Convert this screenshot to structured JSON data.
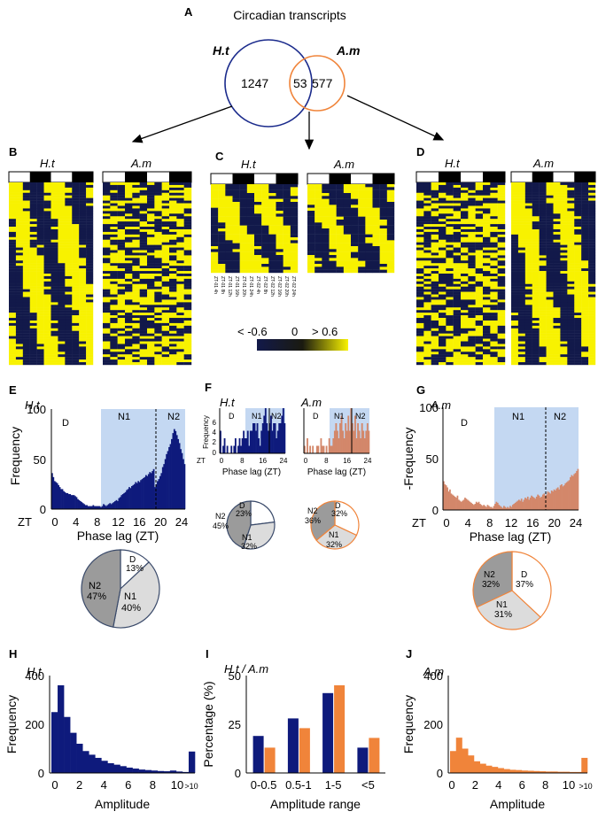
{
  "colors": {
    "navy": "#0e1a7c",
    "orange": "#f0843a",
    "orange_muted": "#d3876a",
    "shade": "#c4d8f2",
    "heat_low": "#12194a",
    "heat_high": "#f8f200",
    "pie_d": "#ffffff",
    "pie_n1": "#dcdcdc",
    "pie_n2": "#9b9b9b"
  },
  "venn": {
    "panel": "A",
    "title": "Circadian transcripts",
    "left_label": "H.t",
    "right_label": "A.m",
    "left_only": "1247",
    "overlap": "53",
    "right_only": "577"
  },
  "heatmaps": {
    "B": {
      "panel": "B",
      "left": "H.t",
      "right": "A.m"
    },
    "C": {
      "panel": "C",
      "left": "H.t",
      "right": "A.m",
      "tick_labels": [
        "ZT-01 4h",
        "ZT-01 8h",
        "ZT-01 12h",
        "ZT-01 16h",
        "ZT-01 20h",
        "ZT-01 24h",
        "ZT-02 4h",
        "ZT-02 8h",
        "ZT-02 12h",
        "ZT-02 16h",
        "ZT-02 20h",
        "ZT-02 24h"
      ]
    },
    "D": {
      "panel": "D",
      "left": "H.t",
      "right": "A.m"
    },
    "scale": {
      "low": "< -0.6",
      "mid": "0",
      "high": "> 0.6"
    }
  },
  "panels": {
    "E": {
      "letter": "E",
      "species": "H.t",
      "ylabel": "Frequency",
      "xlabel": "Phase lag (ZT)",
      "zt": "ZT",
      "zones": [
        "D",
        "N1",
        "N2"
      ],
      "yticks": [
        "0",
        "50",
        "100"
      ],
      "xticks": [
        "0",
        "4",
        "8",
        "12",
        "16",
        "20",
        "24"
      ],
      "pie": {
        "D": "D",
        "D_pct": "13%",
        "N1": "N1",
        "N1_pct": "40%",
        "N2": "N2",
        "N2_pct": "47%"
      }
    },
    "F": {
      "letter": "F",
      "left": {
        "species": "H.t",
        "ylabel": "Frequency",
        "xlabel": "Phase  lag (ZT)",
        "zt": "ZT",
        "zones": [
          "D",
          "N1",
          "N2"
        ],
        "yticks": [
          "0",
          "2",
          "4",
          "6"
        ],
        "xticks": [
          "0",
          "8",
          "16",
          "24"
        ],
        "pie": {
          "D": "D",
          "D_pct": "23%",
          "N1": "N1",
          "N1_pct": "32%",
          "N2": "N2",
          "N2_pct": "45%"
        }
      },
      "right": {
        "species": "A.m",
        "xlabel": "Phase  lag (ZT)",
        "zones": [
          "D",
          "N1",
          "N2"
        ],
        "xticks": [
          "0",
          "8",
          "16",
          "24"
        ],
        "pie": {
          "D": "D",
          "D_pct": "32%",
          "N1": "N1",
          "N1_pct": "32%",
          "N2": "N2",
          "N2_pct": "36%"
        }
      }
    },
    "G": {
      "letter": "G",
      "species": "A.m",
      "ylabel": "-Frequency",
      "xlabel": "Phase lag (ZT)",
      "zt": "ZT",
      "zones": [
        "D",
        "N1",
        "N2"
      ],
      "yticks": [
        "0",
        "50",
        "100"
      ],
      "xticks": [
        "0",
        "4",
        "8",
        "12",
        "16",
        "20",
        "24"
      ],
      "pie": {
        "D": "D",
        "D_pct": "37%",
        "N1": "N1",
        "N1_pct": "31%",
        "N2": "N2",
        "N2_pct": "32%"
      }
    },
    "H": {
      "letter": "H",
      "species": "H.t",
      "ylabel": "Frequency",
      "xlabel": "Amplitude",
      "yticks": [
        "0",
        "200",
        "400"
      ],
      "xticks": [
        "0",
        "2",
        "4",
        "6",
        "8",
        "10",
        ">10"
      ]
    },
    "I": {
      "letter": "I",
      "species": "H.t / A.m",
      "ylabel": "Percentage (%)",
      "xlabel": "Amplitude range",
      "yticks": [
        "0",
        "25",
        "50"
      ],
      "categories": [
        "0-0.5",
        "0.5-1",
        "1-5",
        "<5"
      ]
    },
    "J": {
      "letter": "J",
      "species": "A.m",
      "ylabel": "Frequency",
      "xlabel": "Amplitude",
      "yticks": [
        "0",
        "200",
        "400"
      ],
      "xticks": [
        "0",
        "2",
        "4",
        "6",
        "8",
        "10",
        ">10"
      ]
    }
  },
  "chart_data": [
    {
      "panel": "A",
      "type": "venn",
      "sets": [
        {
          "name": "H.t",
          "only": 1247
        },
        {
          "name": "A.m",
          "only": 577
        }
      ],
      "overlap": 53
    },
    {
      "panel": "E",
      "type": "bar",
      "xlabel": "Phase lag (ZT)",
      "ylabel": "Frequency",
      "xlim": [
        0,
        24
      ],
      "ylim": [
        0,
        100
      ],
      "bin_width": 0.25,
      "zones": [
        {
          "name": "D",
          "range": [
            0,
            10
          ]
        },
        {
          "name": "N1",
          "range": [
            10,
            18.5
          ]
        },
        {
          "name": "N2",
          "range": [
            18.5,
            24
          ]
        }
      ],
      "values": [
        36,
        32,
        28,
        27,
        26,
        24,
        22,
        20,
        20,
        18,
        17,
        16,
        16,
        15,
        15,
        14,
        14,
        14,
        13,
        12,
        10,
        9,
        8,
        7,
        6,
        5,
        4,
        4,
        3,
        3,
        3,
        3,
        4,
        3,
        3,
        3,
        3,
        3,
        2,
        3,
        5,
        4,
        3,
        4,
        5,
        6,
        5,
        6,
        7,
        8,
        9,
        8,
        11,
        12,
        14,
        15,
        16,
        17,
        19,
        20,
        22,
        21,
        23,
        24,
        25,
        27,
        26,
        28,
        27,
        29,
        30,
        31,
        32,
        34,
        33,
        35,
        37,
        36,
        38,
        40,
        22,
        25,
        28,
        30,
        33,
        36,
        42,
        45,
        50,
        55,
        58,
        62,
        65,
        70,
        76,
        80,
        78,
        74,
        70,
        66,
        60,
        56,
        50,
        45
      ]
    },
    {
      "panel": "F",
      "type": "bar",
      "series": [
        {
          "name": "H.t",
          "xlim": [
            0,
            24
          ],
          "ylim": [
            0,
            6
          ],
          "values": [
            3,
            0,
            1,
            2,
            0,
            1,
            0,
            0,
            1,
            0,
            1,
            2,
            0,
            1,
            2,
            1,
            2,
            3,
            2,
            2,
            3,
            1,
            3,
            3,
            4,
            4,
            3,
            4,
            2,
            1,
            3,
            4,
            5,
            6,
            4,
            3,
            4,
            5,
            3,
            4,
            4,
            2,
            3,
            4,
            4,
            5,
            6,
            4
          ]
        },
        {
          "name": "A.m",
          "xlim": [
            0,
            24
          ],
          "ylim": [
            0,
            6
          ],
          "values": [
            1,
            0,
            2,
            0,
            1,
            0,
            1,
            0,
            0,
            1,
            1,
            0,
            2,
            1,
            1,
            0,
            1,
            0,
            2,
            1,
            1,
            2,
            3,
            4,
            3,
            2,
            4,
            5,
            3,
            2,
            4,
            3,
            5,
            3,
            6,
            4,
            3,
            5,
            2,
            4,
            3,
            2,
            4,
            3,
            2,
            3,
            4,
            3
          ]
        }
      ]
    },
    {
      "panel": "G",
      "type": "bar",
      "xlabel": "Phase lag (ZT)",
      "ylabel": "-Frequency",
      "xlim": [
        0,
        24
      ],
      "ylim": [
        0,
        100
      ],
      "bin_width": 0.25,
      "zones": [
        {
          "name": "D",
          "range": [
            0,
            9.8
          ]
        },
        {
          "name": "N1",
          "range": [
            9.8,
            18
          ]
        },
        {
          "name": "N2",
          "range": [
            18,
            24
          ]
        }
      ],
      "values": [
        28,
        25,
        24,
        22,
        18,
        20,
        16,
        15,
        14,
        13,
        12,
        14,
        10,
        9,
        8,
        9,
        10,
        12,
        11,
        10,
        9,
        8,
        7,
        6,
        5,
        6,
        8,
        7,
        8,
        6,
        5,
        4,
        5,
        4,
        3,
        5,
        4,
        3,
        3,
        2,
        4,
        6,
        8,
        7,
        5,
        4,
        3,
        2,
        4,
        3,
        2,
        3,
        2,
        4,
        3,
        5,
        6,
        7,
        8,
        9,
        10,
        9,
        11,
        8,
        10,
        12,
        11,
        13,
        10,
        12,
        14,
        13,
        12,
        11,
        13,
        15,
        14,
        12,
        13,
        15,
        16,
        14,
        15,
        18,
        17,
        16,
        19,
        18,
        20,
        19,
        21,
        22,
        20,
        24,
        25,
        23,
        24,
        26,
        27,
        28,
        29,
        32,
        34,
        33,
        35,
        36,
        38,
        40
      ]
    },
    {
      "panel": "H",
      "type": "bar",
      "xlabel": "Amplitude",
      "ylabel": "Frequency",
      "ylim": [
        0,
        400
      ],
      "bin_width": 0.5,
      "values": [
        250,
        360,
        230,
        165,
        120,
        90,
        75,
        62,
        50,
        40,
        34,
        28,
        22,
        18,
        14,
        12,
        10,
        8,
        7,
        10,
        6,
        4,
        88
      ]
    },
    {
      "panel": "I",
      "type": "bar",
      "xlabel": "Amplitude range",
      "ylabel": "Percentage (%)",
      "ylim": [
        0,
        50
      ],
      "categories": [
        "0-0.5",
        "0.5-1",
        "1-5",
        "<5"
      ],
      "series": [
        {
          "name": "H.t",
          "values": [
            19,
            28,
            41,
            13
          ]
        },
        {
          "name": "A.m",
          "values": [
            13,
            23,
            45,
            18
          ]
        }
      ]
    },
    {
      "panel": "J",
      "type": "bar",
      "xlabel": "Amplitude",
      "ylabel": "Frequency",
      "ylim": [
        0,
        400
      ],
      "bin_width": 0.5,
      "values": [
        90,
        145,
        100,
        72,
        48,
        38,
        30,
        25,
        20,
        16,
        13,
        12,
        10,
        9,
        8,
        7,
        6,
        6,
        5,
        5,
        4,
        4,
        62
      ]
    }
  ]
}
